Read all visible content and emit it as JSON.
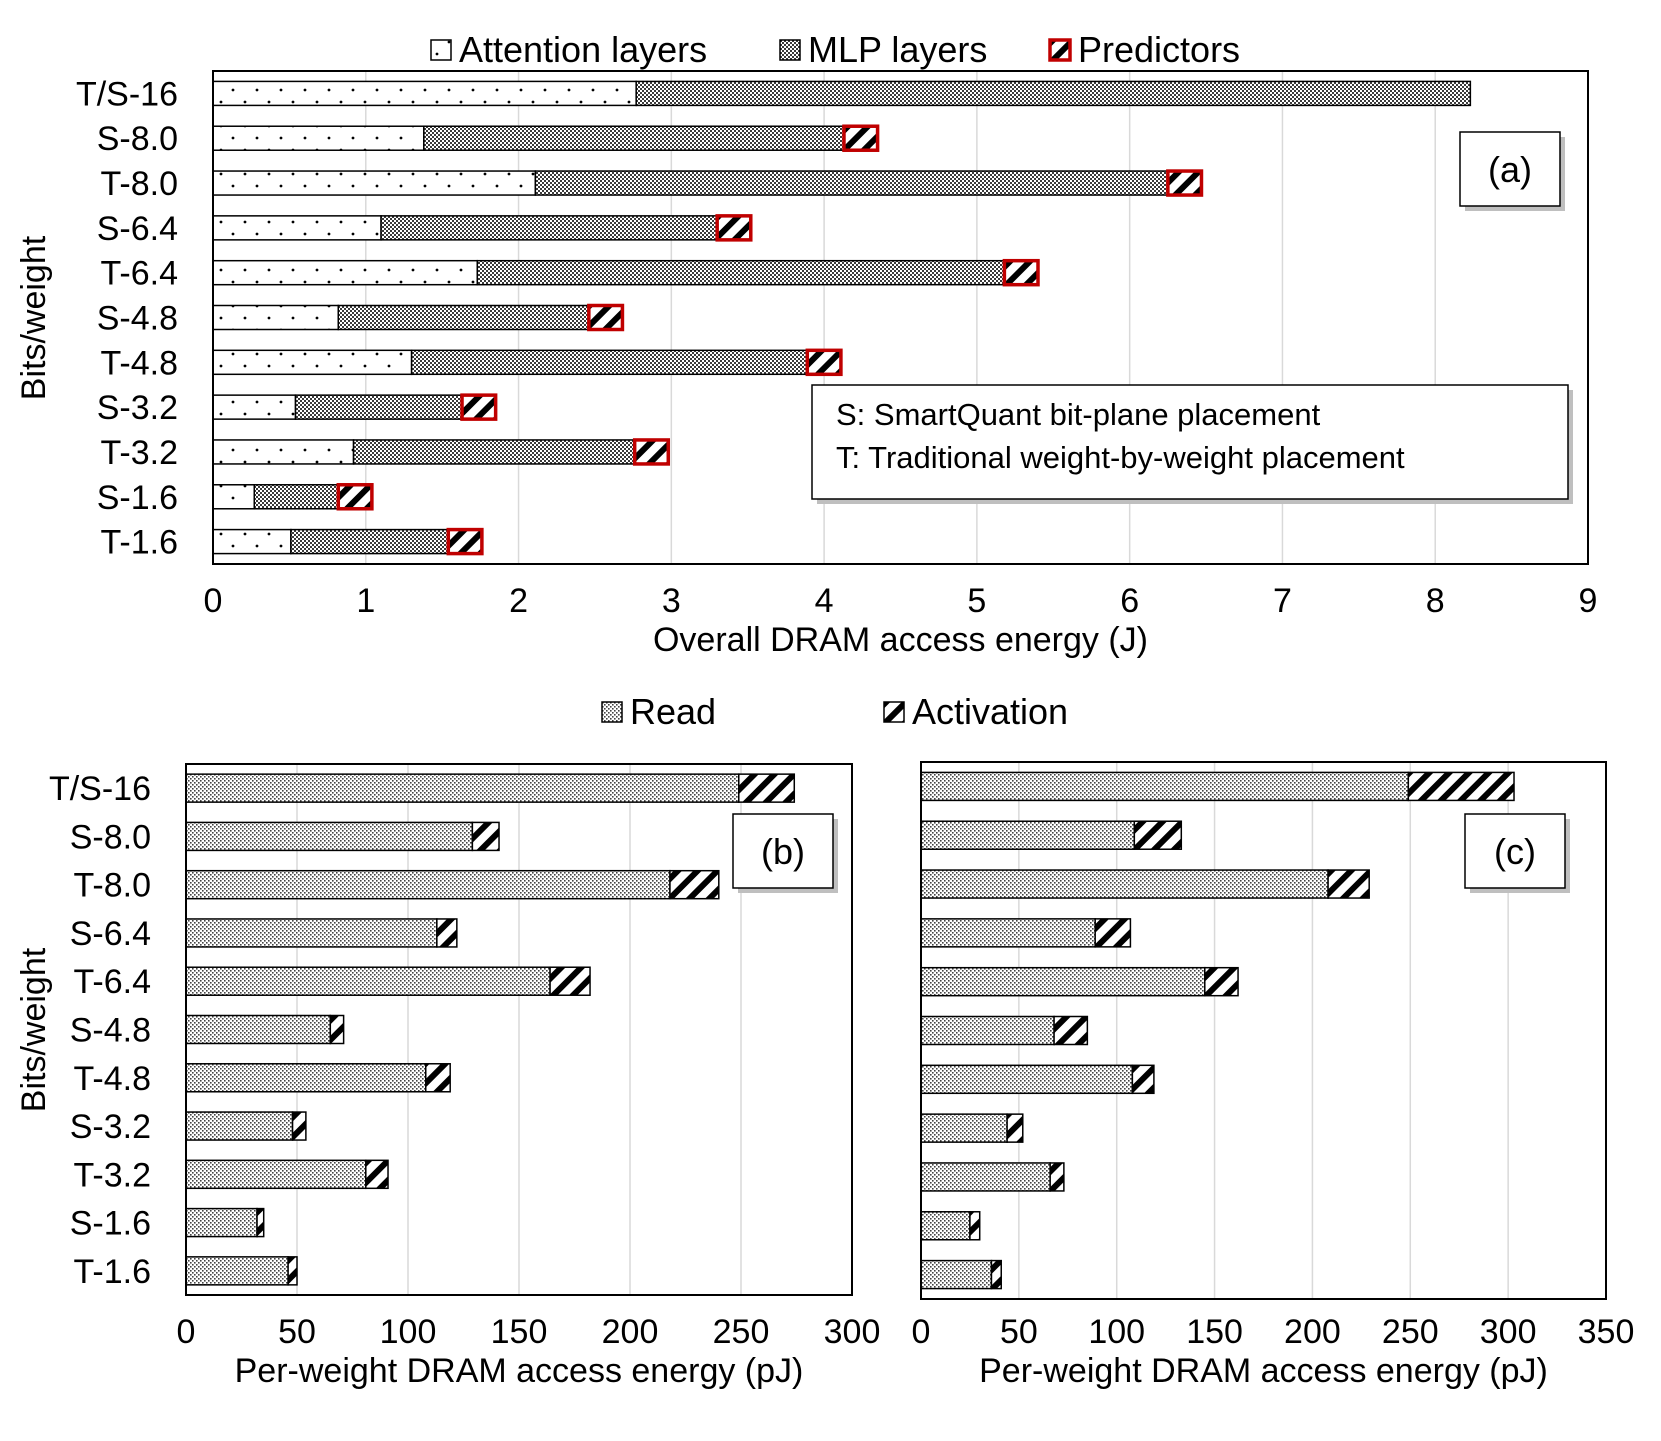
{
  "chart_data": [
    {
      "type": "bar",
      "orientation": "horizontal",
      "stacked": true,
      "panel_label": "(a)",
      "categories": [
        "T/S-16",
        "S-8.0",
        "T-8.0",
        "S-6.4",
        "T-6.4",
        "S-4.8",
        "T-4.8",
        "S-3.2",
        "T-3.2",
        "S-1.6",
        "T-1.6"
      ],
      "series": [
        {
          "name": "Attention layers",
          "values": [
            2.77,
            1.38,
            2.11,
            1.1,
            1.73,
            0.82,
            1.3,
            0.54,
            0.92,
            0.27,
            0.51
          ]
        },
        {
          "name": "MLP layers",
          "values": [
            5.46,
            2.75,
            4.14,
            2.2,
            3.45,
            1.64,
            2.59,
            1.09,
            1.84,
            0.55,
            1.03
          ]
        },
        {
          "name": "Predictors",
          "values": [
            0,
            0.22,
            0.22,
            0.22,
            0.22,
            0.22,
            0.22,
            0.22,
            0.22,
            0.22,
            0.22
          ]
        }
      ],
      "xlabel": "Overall DRAM access energy (J)",
      "ylabel": "Bits/weight",
      "xlim": [
        0,
        9
      ],
      "xticks": [
        "0",
        "1",
        "2",
        "3",
        "4",
        "5",
        "6",
        "7",
        "8",
        "9"
      ],
      "grid": "vertical",
      "legend": "top",
      "annotation": [
        "S: SmartQuant bit-plane placement",
        "T: Traditional weight-by-weight placement"
      ]
    },
    {
      "type": "bar",
      "orientation": "horizontal",
      "stacked": true,
      "panel_label": "(b)",
      "categories": [
        "T/S-16",
        "S-8.0",
        "T-8.0",
        "S-6.4",
        "T-6.4",
        "S-4.8",
        "T-4.8",
        "S-3.2",
        "T-3.2",
        "S-1.6",
        "T-1.6"
      ],
      "series": [
        {
          "name": "Read",
          "values": [
            249,
            129,
            218,
            113,
            164,
            65,
            108,
            48,
            81,
            32,
            46
          ]
        },
        {
          "name": "Activation",
          "values": [
            25,
            12,
            22,
            9,
            18,
            6,
            11,
            6,
            10,
            3,
            4
          ]
        }
      ],
      "xlabel": "Per-weight DRAM access energy (pJ)",
      "ylabel": "Bits/weight",
      "xlim": [
        0,
        300
      ],
      "xticks": [
        "0",
        "50",
        "100",
        "150",
        "200",
        "250",
        "300"
      ],
      "grid": "vertical",
      "legend": "top"
    },
    {
      "type": "bar",
      "orientation": "horizontal",
      "stacked": true,
      "panel_label": "(c)",
      "categories": [
        "T/S-16",
        "S-8.0",
        "T-8.0",
        "S-6.4",
        "T-6.4",
        "S-4.8",
        "T-4.8",
        "S-3.2",
        "T-3.2",
        "S-1.6",
        "T-1.6"
      ],
      "series": [
        {
          "name": "Read",
          "values": [
            249,
            109,
            208,
            89,
            145,
            68,
            108,
            44,
            66,
            25,
            36
          ]
        },
        {
          "name": "Activation",
          "values": [
            54,
            24,
            21,
            18,
            17,
            17,
            11,
            8,
            7,
            5,
            5
          ]
        }
      ],
      "xlabel": "Per-weight DRAM access energy (pJ)",
      "xlim": [
        0,
        350
      ],
      "xticks": [
        "0",
        "50",
        "100",
        "150",
        "200",
        "250",
        "300",
        "350"
      ],
      "grid": "vertical"
    }
  ],
  "legend_top": {
    "items": [
      {
        "label": "Attention layers",
        "pattern": "dots"
      },
      {
        "label": "MLP layers",
        "pattern": "checker"
      },
      {
        "label": "Predictors",
        "pattern": "stripes-red"
      }
    ]
  },
  "legend_bottom": {
    "items": [
      {
        "label": "Read",
        "pattern": "fine-dots"
      },
      {
        "label": "Activation",
        "pattern": "stripes"
      }
    ]
  },
  "colors": {
    "frame": "#000000",
    "grid": "#d9d9d9",
    "predictor_border": "#c00000"
  }
}
